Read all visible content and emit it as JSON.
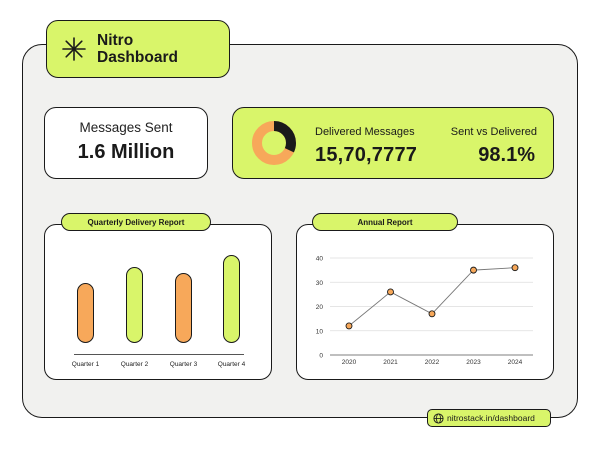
{
  "header": {
    "title_line1": "Nitro",
    "title_line2": "Dashboard",
    "icon": "asterisk-logo-icon"
  },
  "stats": {
    "messages_sent_label": "Messages Sent",
    "messages_sent_value": "1.6 Million",
    "delivered_label": "Delivered Messages",
    "delivered_value": "15,70,7777",
    "sent_vs_delivered_label": "Sent vs Delivered",
    "sent_vs_delivered_value": "98.1%"
  },
  "colors": {
    "accent": "#d9f56a",
    "orange": "#f7a85a",
    "dark": "#1a1a1a"
  },
  "chart_data": [
    {
      "type": "bar",
      "title": "Quarterly Delivery Report",
      "categories": [
        "Quarter 1",
        "Quarter 2",
        "Quarter 3",
        "Quarter 4"
      ],
      "values": [
        60,
        76,
        70,
        88
      ],
      "bar_colors": [
        "#f7a85a",
        "#d9f56a",
        "#f7a85a",
        "#d9f56a"
      ]
    },
    {
      "type": "line",
      "title": "Annual Report",
      "x": [
        "2020",
        "2021",
        "2022",
        "2023",
        "2024"
      ],
      "y": [
        12,
        26,
        17,
        35,
        36
      ],
      "ylim": [
        0,
        40
      ],
      "yticks": [
        "0",
        "10",
        "20",
        "30",
        "40"
      ],
      "grid": true
    }
  ],
  "donut": {
    "dark_fraction": 0.32
  },
  "footer": {
    "url": "nitrostack.in/dashboard"
  }
}
